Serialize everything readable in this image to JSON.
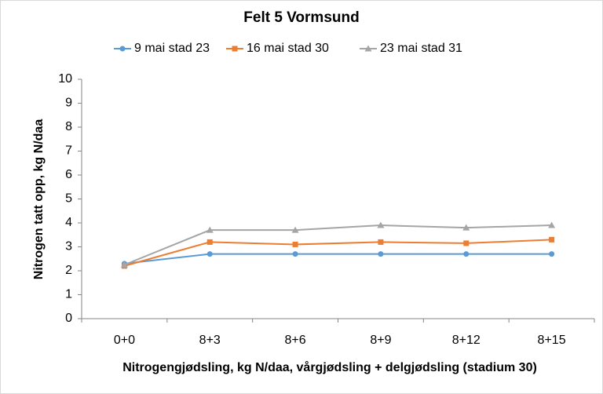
{
  "chart_data": {
    "type": "line",
    "title": "Felt 5 Vormsund",
    "x_label": "Nitrogengjødsling, kg N/daa, vårgjødsling + delgjødsling (stadium 30)",
    "y_label": "Nitrogen tatt opp, kg N/daa",
    "categories": [
      "0+0",
      "8+3",
      "8+6",
      "8+9",
      "8+12",
      "8+15"
    ],
    "series": [
      {
        "name": "9 mai stad 23",
        "color": "#5b9bd5",
        "marker": "circle",
        "values": [
          2.3,
          2.7,
          2.7,
          2.7,
          2.7,
          2.7
        ]
      },
      {
        "name": "16 mai stad 30",
        "color": "#ed7d31",
        "marker": "square",
        "values": [
          2.2,
          3.2,
          3.1,
          3.2,
          3.15,
          3.3
        ]
      },
      {
        "name": "23 mai stad 31",
        "color": "#a5a5a5",
        "marker": "triangle",
        "values": [
          2.25,
          3.7,
          3.7,
          3.9,
          3.8,
          3.9
        ]
      }
    ],
    "ylim": [
      0,
      10
    ],
    "yticks": [
      0,
      1,
      2,
      3,
      4,
      5,
      6,
      7,
      8,
      9,
      10
    ],
    "grid": false,
    "legend": "top"
  }
}
